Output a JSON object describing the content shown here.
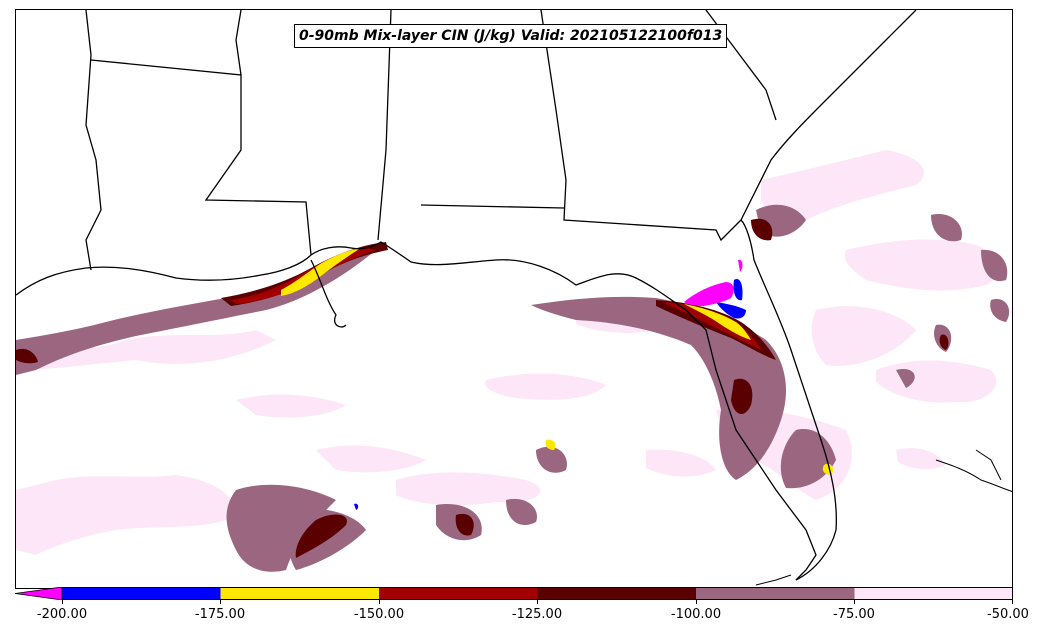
{
  "title": "0-90mb Mix-layer CIN (J/kg) Valid: 202105122100f013",
  "colorbar": {
    "ticks": [
      "-200.00",
      "-175.00",
      "-150.00",
      "-125.00",
      "-100.00",
      "-75.00",
      "-50.00"
    ],
    "bins": [
      {
        "range": "<-200",
        "color": "#ff00ff"
      },
      {
        "range": "-200 to -175",
        "color": "#0000ff"
      },
      {
        "range": "-175 to -150",
        "color": "#ffe800"
      },
      {
        "range": "-150 to -125",
        "color": "#a00000"
      },
      {
        "range": "-125 to -100",
        "color": "#5a0000"
      },
      {
        "range": "-100 to -75",
        "color": "#9a6680"
      },
      {
        "range": "-75 to -50",
        "color": "#fce6f8"
      }
    ]
  },
  "map": {
    "region": "Gulf of Mexico / southeastern United States",
    "field": "Mix-layer CIN shaded"
  }
}
